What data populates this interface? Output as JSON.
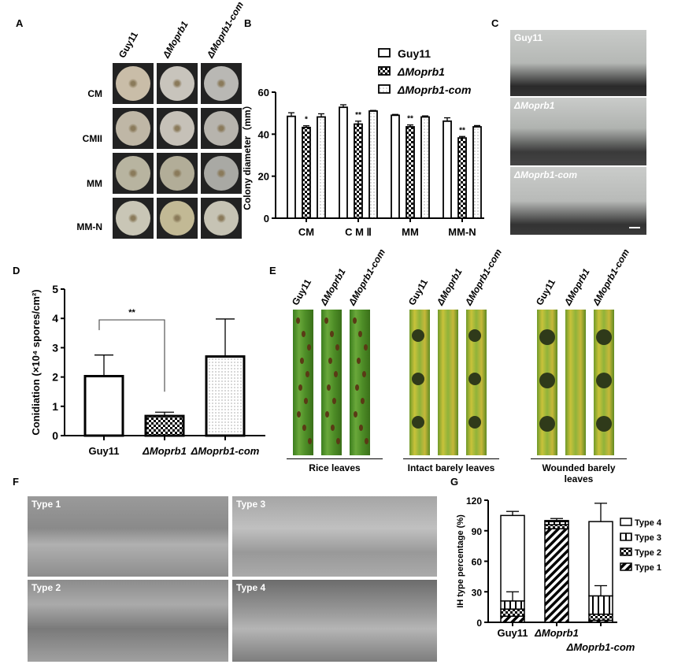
{
  "panels": {
    "A": "A",
    "B": "B",
    "C": "C",
    "D": "D",
    "E": "E",
    "F": "F",
    "G": "G"
  },
  "panelA": {
    "columns": [
      "Guy11",
      "ΔMoprb1",
      "ΔMoprb1-com"
    ],
    "rows": [
      "CM",
      "CMII",
      "MM",
      "MM-N"
    ]
  },
  "panelC": {
    "images": [
      "Guy11",
      "ΔMoprb1",
      "ΔMoprb1-com"
    ]
  },
  "panelE": {
    "columns": [
      "Guy11",
      "ΔMoprb1",
      "ΔMoprb1-com"
    ],
    "groups": [
      "Rice leaves",
      "Intact barely leaves",
      "Wounded barely leaves"
    ]
  },
  "panelF": {
    "images": [
      "Type 1",
      "Type 3",
      "Type 2",
      "Type 4"
    ]
  },
  "colors": {
    "leaf": "#4f8f28",
    "lesion": "#3b2a12",
    "axis": "#000000"
  },
  "chart_data": [
    {
      "panel": "B",
      "type": "bar",
      "ylabel": "Colony diameter（mm）",
      "ylim": [
        0,
        60
      ],
      "yticks": [
        0,
        20,
        40,
        60
      ],
      "categories": [
        "CM",
        "C M Ⅱ",
        "MM",
        "MM-N"
      ],
      "series": [
        {
          "name": "Guy11",
          "fill": "open",
          "values": [
            48.5,
            52.8,
            49,
            46.2
          ],
          "err": [
            1.7,
            1.2,
            0.4,
            1.6
          ]
        },
        {
          "name": "ΔMoprb1",
          "fill": "checker",
          "values": [
            43.2,
            44.8,
            43.5,
            38.2
          ],
          "err": [
            0.8,
            1.4,
            0.9,
            0.7
          ],
          "sig": [
            "*",
            "**",
            "**",
            "**"
          ]
        },
        {
          "name": "ΔMoprb1-com",
          "fill": "dots",
          "values": [
            48.2,
            51,
            48.2,
            43.5
          ],
          "err": [
            1.5,
            0.3,
            0.5,
            0.6
          ]
        }
      ],
      "legend": "top-right"
    },
    {
      "panel": "D",
      "type": "bar",
      "ylabel": "Conidiation (×10⁴ spores/cm²)",
      "ylim": [
        0,
        5
      ],
      "yticks": [
        0,
        1,
        2,
        3,
        4,
        5
      ],
      "categories": [
        "Guy11",
        "ΔMoprb1",
        "ΔMoprb1-com"
      ],
      "values": [
        2.03,
        0.67,
        2.7
      ],
      "err": [
        0.72,
        0.13,
        1.28
      ],
      "fills": [
        "open",
        "checker",
        "dots"
      ],
      "annotation": {
        "between": [
          0,
          1
        ],
        "text": "**"
      }
    },
    {
      "panel": "G",
      "type": "bar",
      "stacked": true,
      "ylabel": "IH type percentage (%)",
      "ylim": [
        0,
        120
      ],
      "yticks": [
        0,
        30,
        60,
        90,
        120
      ],
      "categories": [
        "Guy11",
        "ΔMoprb1",
        "ΔMoprb1-com"
      ],
      "series": [
        {
          "name": "Type 1",
          "fill": "diagonal",
          "values": [
            6,
            92,
            2
          ]
        },
        {
          "name": "Type 2",
          "fill": "checker",
          "values": [
            7,
            4,
            6
          ]
        },
        {
          "name": "Type 3",
          "fill": "vertical",
          "values": [
            8,
            3,
            18
          ]
        },
        {
          "name": "Type 4",
          "fill": "open",
          "values": [
            84,
            1,
            73
          ]
        }
      ],
      "err_top": [
        4,
        2,
        18
      ],
      "err_type3": [
        9,
        0,
        10
      ],
      "legend": "right"
    }
  ]
}
